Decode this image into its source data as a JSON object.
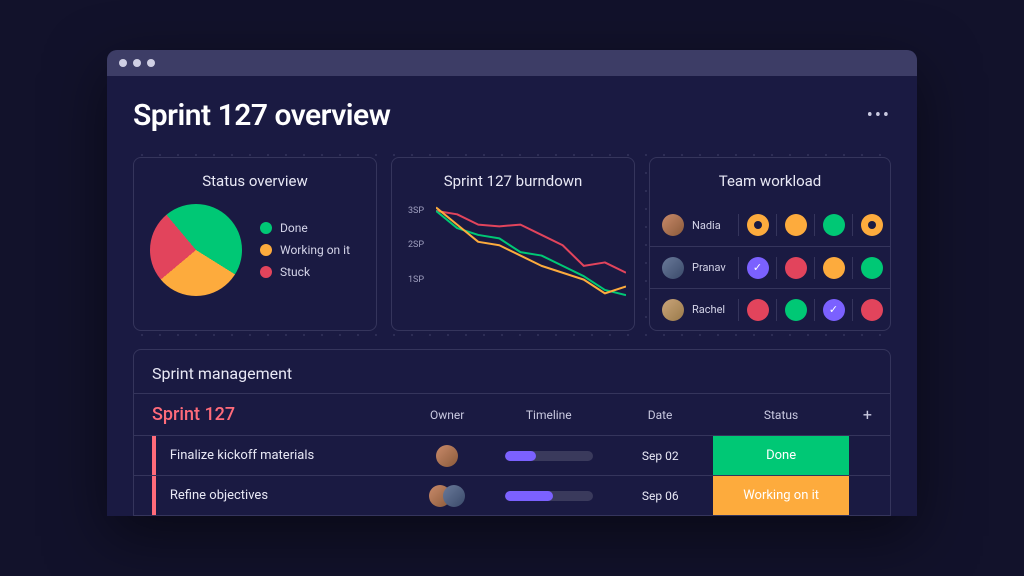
{
  "page": {
    "title": "Sprint 127 overview"
  },
  "colors": {
    "done": "#00c875",
    "working": "#fdab3d",
    "stuck": "#e2445c",
    "purple": "#7b61ff",
    "card_border": "#35355c",
    "bg": "#1a1a42"
  },
  "status_overview": {
    "title": "Status overview",
    "type": "pie",
    "slices": [
      {
        "label": "Done",
        "value": 45,
        "color": "#00c875"
      },
      {
        "label": "Working on it",
        "value": 30,
        "color": "#fdab3d"
      },
      {
        "label": "Stuck",
        "value": 25,
        "color": "#e2445c"
      }
    ]
  },
  "burndown": {
    "title": "Sprint 127 burndown",
    "type": "line",
    "y_ticks": [
      "3SP",
      "2SP",
      "1SP"
    ],
    "x_range": [
      0,
      9
    ],
    "y_range": [
      0,
      3.2
    ],
    "series": [
      {
        "name": "stuck",
        "color": "#e2445c",
        "points": [
          [
            0,
            3.0
          ],
          [
            1,
            2.9
          ],
          [
            2,
            2.6
          ],
          [
            3,
            2.55
          ],
          [
            4,
            2.6
          ],
          [
            5,
            2.3
          ],
          [
            6,
            2.0
          ],
          [
            7,
            1.4
          ],
          [
            8,
            1.5
          ],
          [
            9,
            1.2
          ]
        ]
      },
      {
        "name": "done",
        "color": "#00c875",
        "points": [
          [
            0,
            3.0
          ],
          [
            1,
            2.5
          ],
          [
            2,
            2.3
          ],
          [
            3,
            2.2
          ],
          [
            4,
            1.8
          ],
          [
            5,
            1.7
          ],
          [
            6,
            1.4
          ],
          [
            7,
            1.1
          ],
          [
            8,
            0.7
          ],
          [
            9,
            0.55
          ]
        ]
      },
      {
        "name": "working",
        "color": "#fdab3d",
        "points": [
          [
            0,
            3.1
          ],
          [
            1,
            2.6
          ],
          [
            2,
            2.1
          ],
          [
            3,
            2.0
          ],
          [
            4,
            1.7
          ],
          [
            5,
            1.4
          ],
          [
            6,
            1.2
          ],
          [
            7,
            1.0
          ],
          [
            8,
            0.6
          ],
          [
            9,
            0.8
          ]
        ]
      }
    ],
    "line_width": 2
  },
  "workload": {
    "title": "Team workload",
    "members": [
      {
        "name": "Nadia",
        "avatar_class": "f1",
        "cells": [
          {
            "color": "#fdab3d",
            "style": "ring"
          },
          {
            "color": "#fdab3d",
            "style": "solid"
          },
          {
            "color": "#00c875",
            "style": "solid"
          },
          {
            "color": "#fdab3d",
            "style": "ring"
          }
        ]
      },
      {
        "name": "Pranav",
        "avatar_class": "f2",
        "cells": [
          {
            "color": "#7b61ff",
            "style": "check"
          },
          {
            "color": "#e2445c",
            "style": "solid"
          },
          {
            "color": "#fdab3d",
            "style": "solid"
          },
          {
            "color": "#00c875",
            "style": "solid"
          }
        ]
      },
      {
        "name": "Rachel",
        "avatar_class": "f3",
        "cells": [
          {
            "color": "#e2445c",
            "style": "solid"
          },
          {
            "color": "#00c875",
            "style": "solid"
          },
          {
            "color": "#7b61ff",
            "style": "check"
          },
          {
            "color": "#e2445c",
            "style": "solid"
          }
        ]
      }
    ]
  },
  "management": {
    "title": "Sprint management",
    "sprint_label": "Sprint 127",
    "columns": {
      "owner": "Owner",
      "timeline": "Timeline",
      "date": "Date",
      "status": "Status"
    },
    "accent_color": "#ff6b7a",
    "rows": [
      {
        "task": "Finalize kickoff materials",
        "owners": [
          "f1"
        ],
        "progress": 0.35,
        "date": "Sep 02",
        "status_label": "Done",
        "status_color": "#00c875"
      },
      {
        "task": "Refine objectives",
        "owners": [
          "f1",
          "f2"
        ],
        "progress": 0.55,
        "date": "Sep 06",
        "status_label": "Working on it",
        "status_color": "#fdab3d"
      }
    ]
  }
}
